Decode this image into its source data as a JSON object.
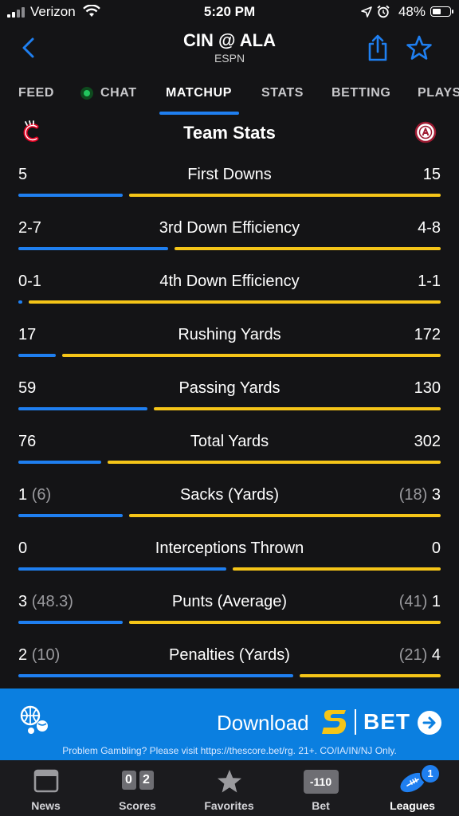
{
  "status_bar": {
    "carrier": "Verizon",
    "time": "5:20 PM",
    "battery": "48%"
  },
  "header": {
    "title": "CIN @ ALA",
    "subtitle": "ESPN"
  },
  "tabs": [
    {
      "label": "FEED"
    },
    {
      "label": "CHAT"
    },
    {
      "label": "MATCHUP"
    },
    {
      "label": "STATS"
    },
    {
      "label": "BETTING"
    },
    {
      "label": "PLAYS"
    }
  ],
  "team_stats": {
    "title": "Team Stats",
    "colors": {
      "away": "#1f7ff0",
      "home": "#f5c518"
    },
    "rows": [
      {
        "label": "First Downs",
        "away": "5",
        "home": "15",
        "away_share": 0.25
      },
      {
        "label": "3rd Down Efficiency",
        "away": "2-7",
        "home": "4-8",
        "away_share": 0.36
      },
      {
        "label": "4th Down Efficiency",
        "away": "0-1",
        "home": "1-1",
        "away_share": 0.01
      },
      {
        "label": "Rushing Yards",
        "away": "17",
        "home": "172",
        "away_share": 0.09
      },
      {
        "label": "Passing Yards",
        "away": "59",
        "home": "130",
        "away_share": 0.31
      },
      {
        "label": "Total Yards",
        "away": "76",
        "home": "302",
        "away_share": 0.2
      },
      {
        "label": "Sacks (Yards)",
        "away": "1",
        "away_sub": "(6)",
        "home": "3",
        "home_sub": "(18)",
        "away_share": 0.25
      },
      {
        "label": "Interceptions Thrown",
        "away": "0",
        "home": "0",
        "away_share": 0.5
      },
      {
        "label": "Punts (Average)",
        "away": "3",
        "away_sub": "(48.3)",
        "home": "1",
        "home_sub": "(41)",
        "away_share": 0.25
      },
      {
        "label": "Penalties (Yards)",
        "away": "2",
        "away_sub": "(10)",
        "home": "4",
        "home_sub": "(21)",
        "away_share": 0.66
      }
    ]
  },
  "promo": {
    "download_label": "Download",
    "bet_label": "BET",
    "disclaimer": "Problem Gambling? Please visit https://thescore.bet/rg. 21+. CO/IA/IN/NJ Only."
  },
  "bottom_nav": {
    "items": [
      {
        "label": "News"
      },
      {
        "label": "Scores"
      },
      {
        "label": "Favorites"
      },
      {
        "label": "Bet"
      },
      {
        "label": "Leagues"
      }
    ],
    "scores_icon": [
      "0",
      "2"
    ],
    "bet_icon": "-110",
    "leagues_badge": "1"
  }
}
